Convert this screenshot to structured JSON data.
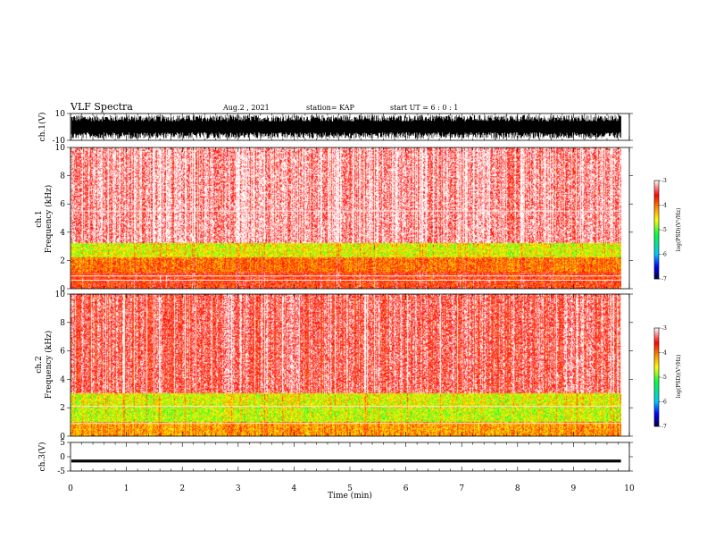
{
  "header": {
    "title": "VLF Spectra",
    "date": "Aug.2  , 2021",
    "station": "station= KAP",
    "start": "start  UT =   6 : 0  : 1"
  },
  "chart_data": [
    {
      "type": "line",
      "panel": "ch1-waveform",
      "ylabel": "ch.1(V)",
      "ylim": [
        -10,
        10
      ],
      "yticks": [
        "10",
        "-10"
      ],
      "xlim": [
        0,
        10
      ],
      "description_values": {
        "amplitude_range_V": [
          -9,
          9
        ],
        "x_end_min": 9.85
      },
      "color": "#000000"
    },
    {
      "type": "heatmap",
      "panel": "ch1-spectrogram",
      "ylabel": "Frequency  (kHz)",
      "channel_label": "ch.1",
      "ylim": [
        0,
        10
      ],
      "yticks": [
        "0",
        "2",
        "4",
        "6",
        "8",
        "10"
      ],
      "xlim": [
        0,
        10
      ],
      "x_end_min": 9.85,
      "colorbar": {
        "label": "log(PSD)(V²/Hz)",
        "range": [
          -7,
          -3
        ],
        "ticks": [
          "-3",
          "-4",
          "-5",
          "-6",
          "-7"
        ]
      },
      "bands_kHz": [
        {
          "from": 0,
          "to": 1.2,
          "level": -3.7
        },
        {
          "from": 1.2,
          "to": 2.2,
          "level": -4.0
        },
        {
          "from": 2.2,
          "to": 3.2,
          "level": -4.6
        },
        {
          "from": 3.2,
          "to": 10,
          "level": -3.2
        }
      ],
      "lines_kHz": [
        5.5,
        0.9,
        0.6
      ]
    },
    {
      "type": "heatmap",
      "panel": "ch2-spectrogram",
      "ylabel": "Frequency  (kHz)",
      "channel_label": "ch.2",
      "ylim": [
        0,
        10
      ],
      "yticks": [
        "0",
        "2",
        "4",
        "6",
        "8",
        "10"
      ],
      "xlim": [
        0,
        10
      ],
      "x_end_min": 9.85,
      "colorbar": {
        "label": "log(PSD)(V²/Hz)",
        "range": [
          -7,
          -3
        ],
        "ticks": [
          "-3",
          "-4",
          "-5",
          "-6",
          "-7"
        ]
      },
      "bands_kHz": [
        {
          "from": 0,
          "to": 1.0,
          "level": -4.2
        },
        {
          "from": 1.0,
          "to": 2.0,
          "level": -4.7
        },
        {
          "from": 2.0,
          "to": 3.0,
          "level": -4.6
        },
        {
          "from": 3.0,
          "to": 10,
          "level": -3.4
        }
      ],
      "lines_kHz": [
        2.1,
        0.9
      ]
    },
    {
      "type": "line",
      "panel": "ch3-waveform",
      "ylabel": "ch.3(V)",
      "ylim": [
        -5,
        5
      ],
      "yticks": [
        "5",
        "0",
        "-5"
      ],
      "xlim": [
        0,
        10
      ],
      "description_values": {
        "offset_V": -1.5,
        "amplitude_V": 0.5,
        "x_end_min": 9.85
      },
      "color": "#000000"
    }
  ],
  "xaxis": {
    "label": "Time  (min)",
    "ticks": [
      "0",
      "1",
      "2",
      "3",
      "4",
      "5",
      "6",
      "7",
      "8",
      "9",
      "10"
    ]
  },
  "colors": {
    "white": "#ffffff",
    "red": "#ff0000",
    "orange": "#ff8800",
    "yellow": "#ffff00",
    "green": "#00ff40",
    "cyan": "#00ffff",
    "blue": "#0000ff",
    "navy": "#000040"
  }
}
